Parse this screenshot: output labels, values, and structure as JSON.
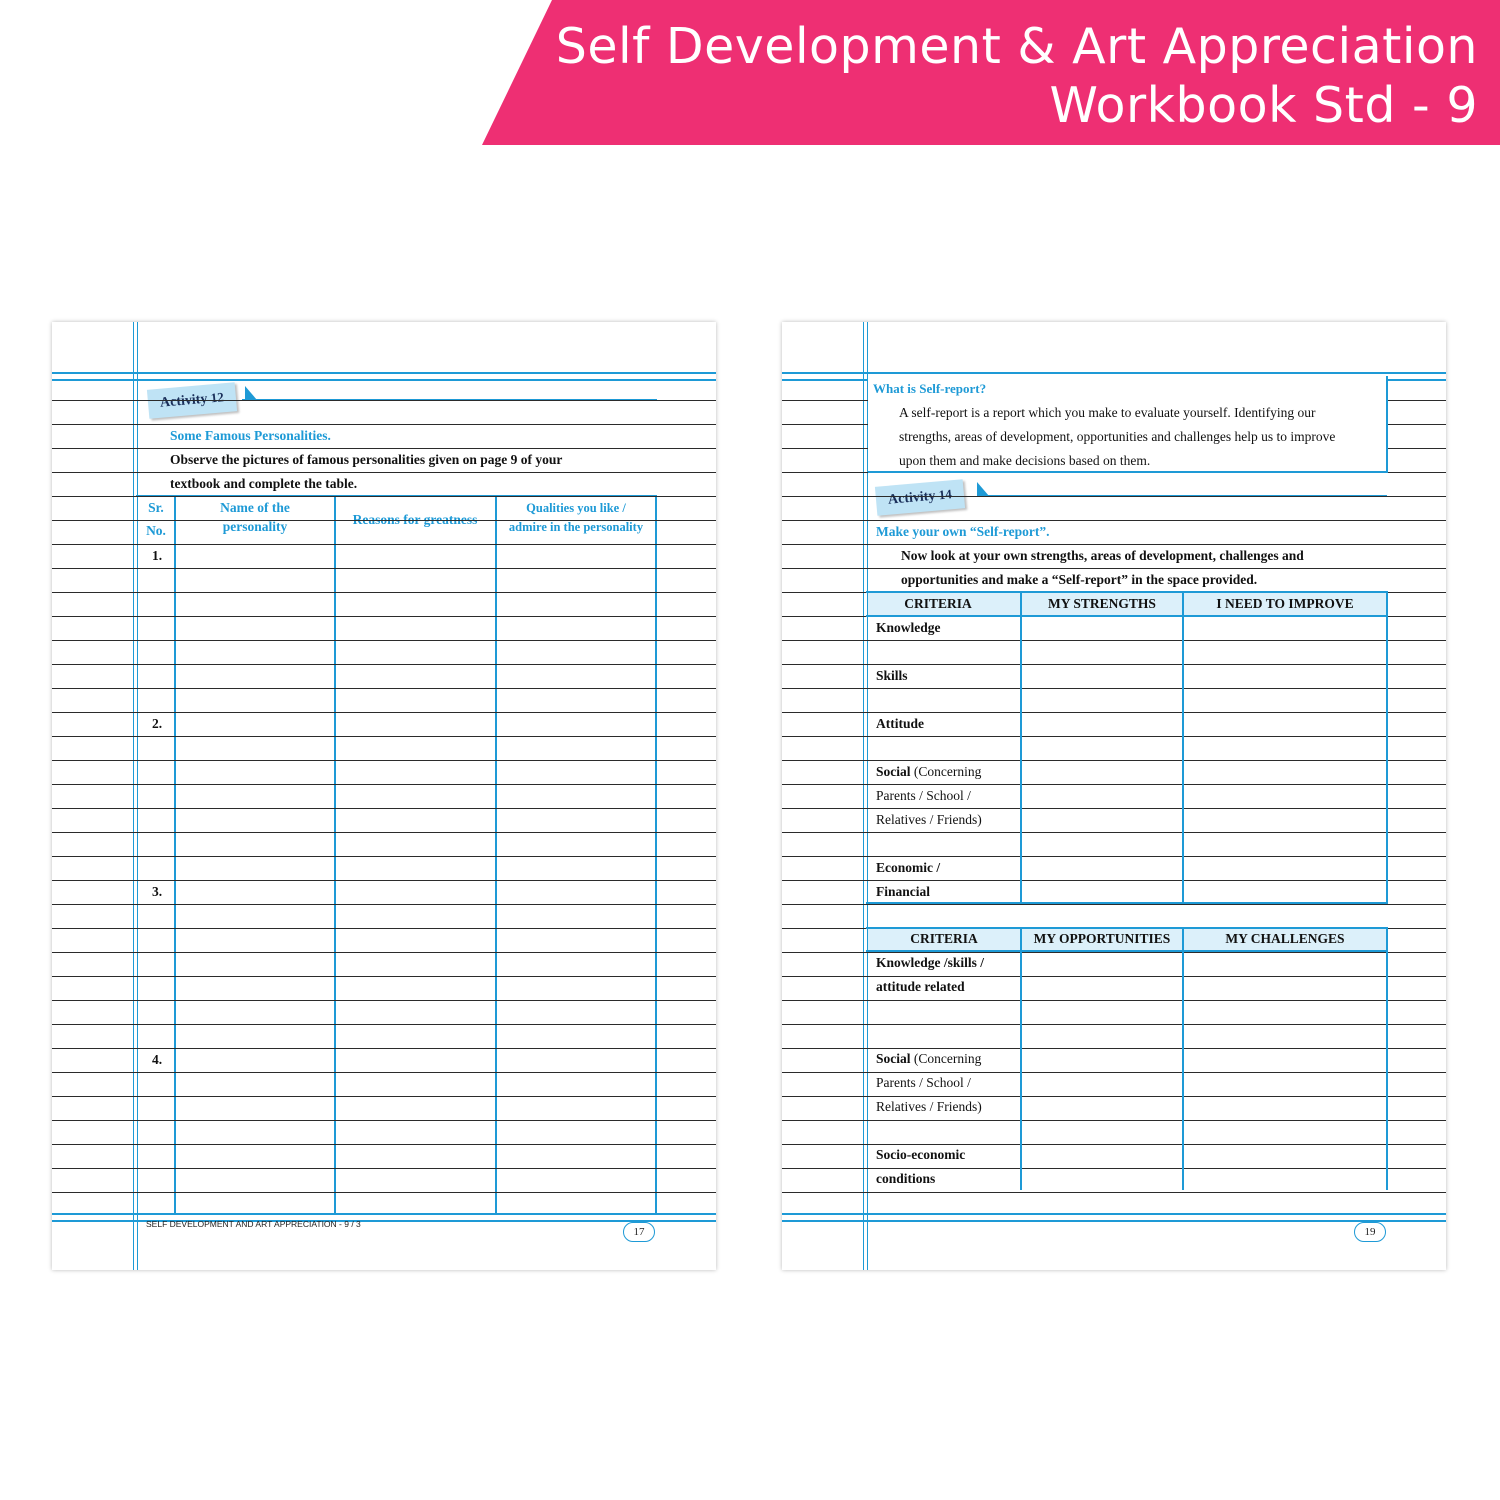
{
  "banner": {
    "line1": "Self Development & Art Appreciation",
    "line2": "Workbook Std - 9"
  },
  "left_page": {
    "activity_label": "Activity",
    "activity_number": "12",
    "heading": "Some Famous Personalities.",
    "instruction_line1": "Observe the pictures of famous personalities given on page 9 of your",
    "instruction_line2": "textbook and complete the table.",
    "table_headers": {
      "sr_line1": "Sr.",
      "sr_line2": "No.",
      "name_line1": "Name of the",
      "name_line2": "personality",
      "reasons": "Reasons for greatness",
      "qualities_line1": "Qualities you like /",
      "qualities_line2": "admire in the personality"
    },
    "row_numbers": [
      "1.",
      "2.",
      "3.",
      "4."
    ],
    "footer_text": "SELF DEVELOPMENT AND ART APPRECIATION - 9 / 3",
    "page_number": "17"
  },
  "right_page": {
    "box_title": "What is Self-report?",
    "box_line1": "A self-report is a report which you make to evaluate yourself. Identifying our",
    "box_line2": "strengths, areas of development, opportunities and challenges help us to improve",
    "box_line3": "upon them and make decisions based on them.",
    "activity_label": "Activity",
    "activity_number": "14",
    "heading": "Make your own “Self-report”.",
    "instruction_line1": "Now look at your own strengths, areas of development, challenges and",
    "instruction_line2": "opportunities and make a “Self-report” in the space provided.",
    "table1_headers": {
      "criteria": "CRITERIA",
      "strengths": "MY STRENGTHS",
      "improve": "I NEED TO IMPROVE"
    },
    "table1_rows": {
      "knowledge": "Knowledge",
      "skills": "Skills",
      "attitude": "Attitude",
      "social_bold": "Social",
      "social_rest": " (Concerning",
      "social_line2": "Parents / School /",
      "social_line3": "Relatives / Friends)",
      "economic_line1": "Economic /",
      "economic_line2": "Financial"
    },
    "table2_headers": {
      "criteria": "CRITERIA",
      "opportunities": "MY OPPORTUNITIES",
      "challenges": "MY CHALLENGES"
    },
    "table2_rows": {
      "ksa_line1": "Knowledge /skills /",
      "ksa_line2": "attitude related",
      "social_bold": "Social",
      "social_rest": " (Concerning",
      "social_line2": "Parents / School /",
      "social_line3": "Relatives / Friends)",
      "socio_line1": "Socio-economic",
      "socio_line2": "conditions"
    },
    "page_number": "19"
  }
}
